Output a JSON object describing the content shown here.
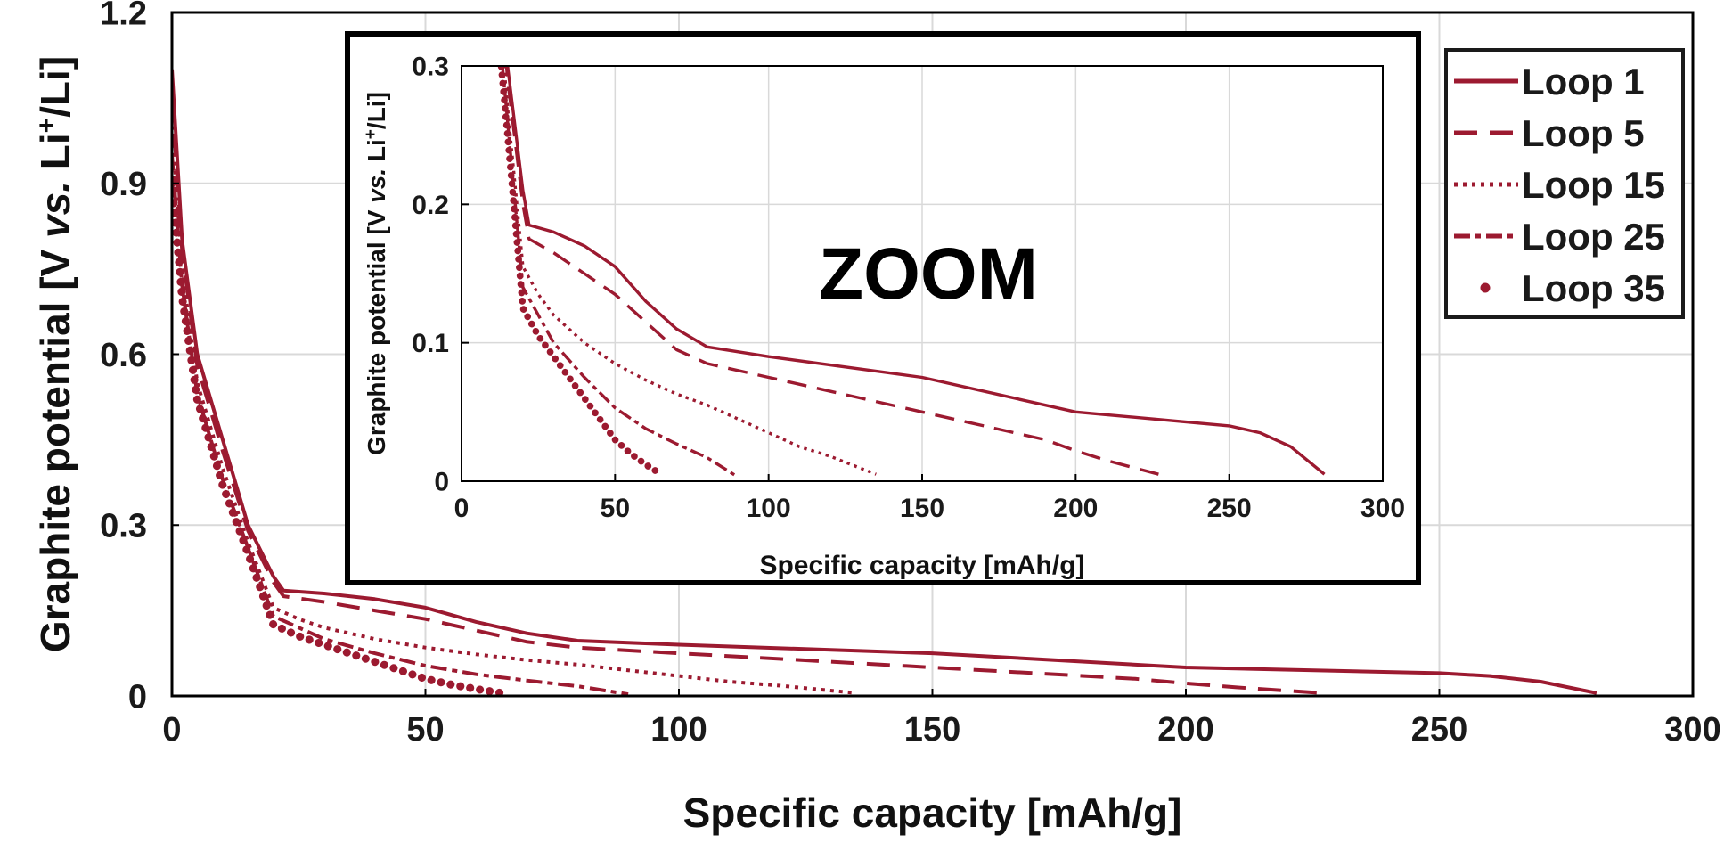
{
  "colors": {
    "series": "#9c1a30",
    "grid": "#d9d9d9",
    "axis": "#000000"
  },
  "chart_data": [
    {
      "type": "line",
      "xlabel": "Specific capacity [mAh/g]",
      "ylabel_parts": [
        "Graphite potential [V ",
        "vs.",
        " Li",
        "+",
        "/Li]"
      ],
      "xlim": [
        0,
        300
      ],
      "ylim": [
        0,
        1.2
      ],
      "xticks": [
        0,
        50,
        100,
        150,
        200,
        250,
        300
      ],
      "yticks": [
        0,
        0.3,
        0.6,
        0.9,
        1.2
      ],
      "xtick_labels": [
        "0",
        "50",
        "100",
        "150",
        "200",
        "250",
        "300"
      ],
      "ytick_labels": [
        "0",
        "0.3",
        "0.6",
        "0.9",
        "1.2"
      ],
      "grid": true,
      "legend": {
        "position": "top-right",
        "entries": [
          {
            "label": "Loop 1",
            "style": "solid"
          },
          {
            "label": "Loop 5",
            "style": "dashed"
          },
          {
            "label": "Loop 15",
            "style": "dotted"
          },
          {
            "label": "Loop 25",
            "style": "dashdot"
          },
          {
            "label": "Loop 35",
            "style": "dots"
          }
        ]
      },
      "series": [
        {
          "name": "Loop 1",
          "style": "solid",
          "x": [
            0,
            2,
            5,
            10,
            15,
            20,
            22,
            30,
            40,
            50,
            60,
            70,
            80,
            100,
            150,
            200,
            250,
            260,
            270,
            281
          ],
          "y": [
            1.1,
            0.8,
            0.6,
            0.45,
            0.3,
            0.21,
            0.185,
            0.18,
            0.17,
            0.155,
            0.13,
            0.11,
            0.097,
            0.09,
            0.075,
            0.05,
            0.04,
            0.035,
            0.025,
            0.005
          ]
        },
        {
          "name": "Loop 5",
          "style": "dashed",
          "x": [
            0,
            2,
            5,
            10,
            15,
            20,
            22,
            30,
            40,
            50,
            60,
            70,
            80,
            100,
            150,
            190,
            200,
            210,
            227
          ],
          "y": [
            1.05,
            0.78,
            0.58,
            0.43,
            0.29,
            0.2,
            0.175,
            0.165,
            0.15,
            0.135,
            0.115,
            0.095,
            0.085,
            0.075,
            0.05,
            0.03,
            0.022,
            0.015,
            0.005
          ]
        },
        {
          "name": "Loop 15",
          "style": "dotted",
          "x": [
            0,
            2,
            5,
            10,
            15,
            20,
            25,
            30,
            40,
            50,
            60,
            70,
            80,
            90,
            100,
            110,
            120,
            135
          ],
          "y": [
            1.0,
            0.75,
            0.55,
            0.4,
            0.27,
            0.155,
            0.135,
            0.12,
            0.1,
            0.085,
            0.073,
            0.063,
            0.055,
            0.045,
            0.035,
            0.025,
            0.018,
            0.005
          ]
        },
        {
          "name": "Loop 25",
          "style": "dashdot",
          "x": [
            0,
            2,
            5,
            10,
            15,
            20,
            25,
            30,
            40,
            50,
            60,
            70,
            80,
            90
          ],
          "y": [
            0.95,
            0.72,
            0.53,
            0.38,
            0.26,
            0.14,
            0.12,
            0.1,
            0.075,
            0.053,
            0.038,
            0.027,
            0.017,
            0.003
          ]
        },
        {
          "name": "Loop 35",
          "style": "dots",
          "x": [
            0,
            2,
            5,
            10,
            15,
            20,
            25,
            30,
            35,
            40,
            45,
            50,
            55,
            60,
            65
          ],
          "y": [
            0.9,
            0.7,
            0.52,
            0.37,
            0.25,
            0.125,
            0.105,
            0.09,
            0.075,
            0.06,
            0.045,
            0.03,
            0.02,
            0.012,
            0.005
          ]
        }
      ]
    },
    {
      "type": "line",
      "annotation": "ZOOM",
      "xlabel": "Specific capacity [mAh/g]",
      "ylabel_parts": [
        "Graphite potential [V ",
        "vs.",
        " Li",
        "+",
        "/Li]"
      ],
      "xlim": [
        0,
        300
      ],
      "ylim": [
        0,
        0.3
      ],
      "xticks": [
        0,
        50,
        100,
        150,
        200,
        250,
        300
      ],
      "yticks": [
        0,
        0.1,
        0.2,
        0.3
      ],
      "xtick_labels": [
        "0",
        "50",
        "100",
        "150",
        "200",
        "250",
        "300"
      ],
      "ytick_labels": [
        "0",
        "0.1",
        "0.2",
        "0.3"
      ],
      "grid": true,
      "series_ref": "same as main chart"
    }
  ]
}
